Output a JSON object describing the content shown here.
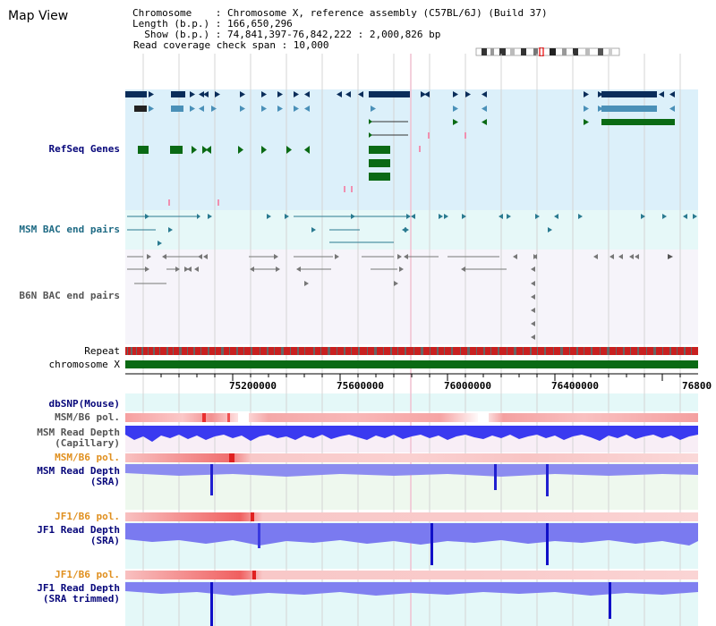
{
  "title": "Map View",
  "info": {
    "chromosome_line": "Chromosome    : Chromosome X, reference assembly (C57BL/6J) (Build 37)",
    "length_line": "Length (b.p.) : 166,650,296",
    "show_line": "  Show (b.p.) : 74,841,397-76,842,222 : 2,000,826 bp",
    "coverage_line": "Read coverage check span : 10,000"
  },
  "tracks": {
    "refseq": "RefSeq Genes",
    "msm_bac": "MSM BAC end pairs",
    "b6n_bac": "B6N BAC end pairs",
    "repeat": "Repeat",
    "chromosome": "chromosome X",
    "dbsnp": "dbSNP(Mouse)",
    "msm_b6_pol_1": "MSM/B6 pol.",
    "msm_read_depth_cap": "MSM Read Depth\n(Capillary)",
    "msm_b6_pol_2": "MSM/B6 pol.",
    "msm_read_depth_sra": "MSM Read Depth\n(SRA)",
    "jf1_b6_pol_1": "JF1/B6 pol.",
    "jf1_read_depth_sra": "JF1 Read Depth\n(SRA)",
    "jf1_b6_pol_2": "JF1/B6 pol.",
    "jf1_read_depth_trim": "JF1 Read Depth\n(SRA trimmed)"
  },
  "axis_ticks": [
    "75200000",
    "75600000",
    "76000000",
    "76400000",
    "76800"
  ],
  "colors": {
    "refseq_bg": "#dcf0fa",
    "bac_msm_bg": "#e6f8f8",
    "bac_b6n_bg": "#f4f2f8",
    "gene_navy": "#0a2d5a",
    "gene_blue": "#4a90b8",
    "gene_green": "#0a6a14",
    "bac_teal": "#2a7a90",
    "bac_gray": "#707070",
    "chromosome_green": "#0a6a14",
    "depth_blue": "#4a4af0",
    "depth_light": "#9090f0",
    "pol_pink": "#f8b8b8",
    "pol_red": "#e82020",
    "cyan_bg": "#e4f8f8",
    "lavender_bg": "#f6eef8",
    "mint_bg": "#eefaee"
  }
}
